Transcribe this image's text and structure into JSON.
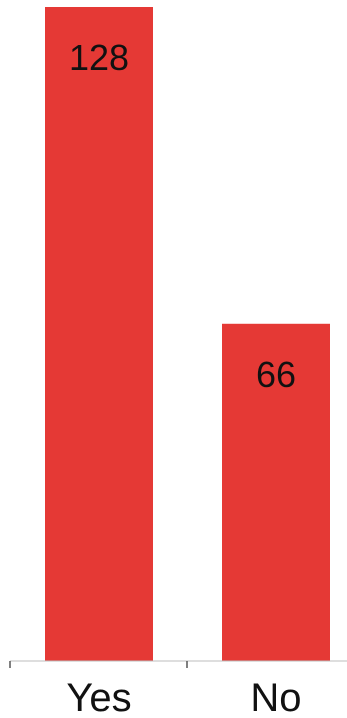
{
  "chart_data": {
    "type": "bar",
    "categories": [
      "Yes",
      "No"
    ],
    "values": [
      128,
      66
    ],
    "title": "",
    "xlabel": "",
    "ylabel": "",
    "ylim": [
      0,
      128
    ],
    "grid": false,
    "legend": "none",
    "data_labels": [
      "128",
      "66"
    ],
    "colors": {
      "bar": "#e53935",
      "axis": "#bdbdbd",
      "tick": "#555555",
      "text": "#111111"
    }
  }
}
